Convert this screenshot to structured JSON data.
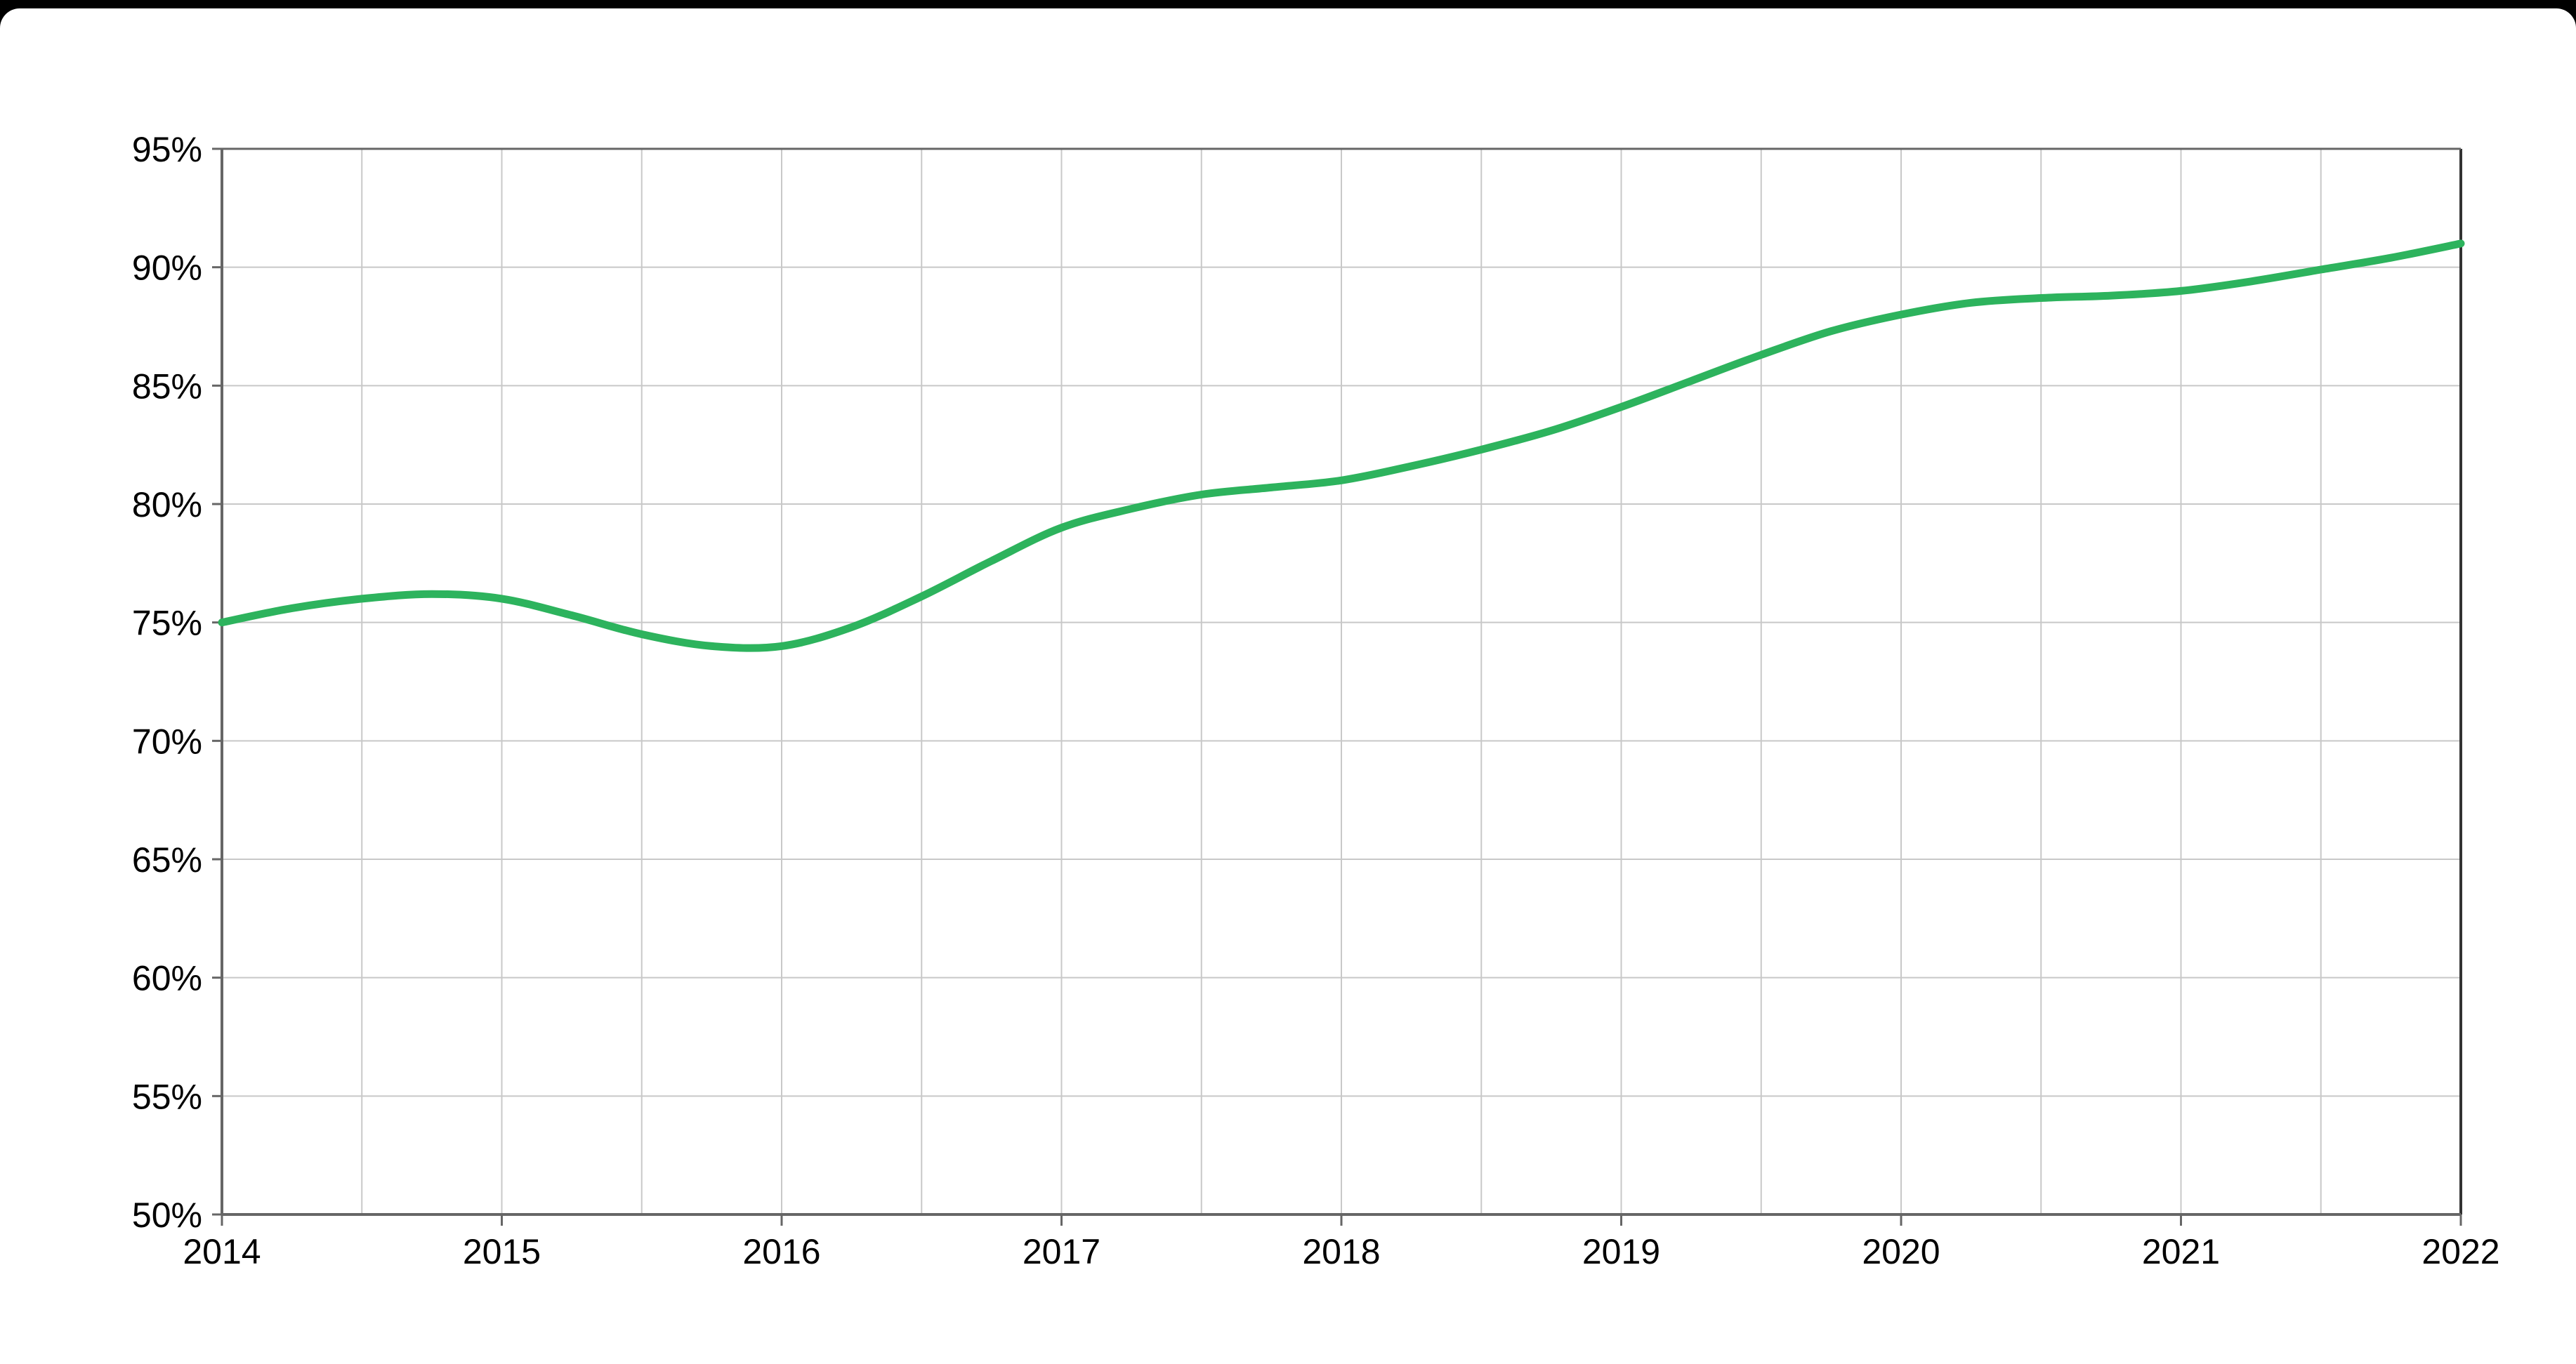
{
  "chart_data": {
    "type": "line",
    "title": "",
    "xlabel": "",
    "ylabel": "",
    "xlim": [
      2014,
      2022
    ],
    "ylim": [
      50,
      95
    ],
    "x_ticks": [
      2014,
      2015,
      2016,
      2017,
      2018,
      2019,
      2020,
      2021,
      2022
    ],
    "x_tick_labels": [
      "2014",
      "2015",
      "2016",
      "2017",
      "2018",
      "2019",
      "2020",
      "2021",
      "2022"
    ],
    "y_ticks": [
      50,
      55,
      60,
      65,
      70,
      75,
      80,
      85,
      90,
      95
    ],
    "y_tick_labels": [
      "50%",
      "55%",
      "60%",
      "65%",
      "70%",
      "75%",
      "80%",
      "85%",
      "90%",
      "95%"
    ],
    "grid": true,
    "legend": "none",
    "colors": {
      "line": "#2db35d",
      "grid": "#c8c8c8",
      "axis": "#666666"
    },
    "series": [
      {
        "x": [
          2014.0,
          2014.25,
          2014.5,
          2014.75,
          2015.0,
          2015.25,
          2015.5,
          2015.75,
          2016.0,
          2016.25,
          2016.5,
          2016.75,
          2017.0,
          2017.25,
          2017.5,
          2017.75,
          2018.0,
          2018.25,
          2018.5,
          2018.75,
          2019.0,
          2019.25,
          2019.5,
          2019.75,
          2020.0,
          2020.25,
          2020.5,
          2020.75,
          2021.0,
          2021.25,
          2021.5,
          2021.75,
          2022.0
        ],
        "values": [
          75.0,
          75.6,
          76.0,
          76.2,
          76.0,
          75.3,
          74.5,
          74.0,
          74.0,
          74.8,
          76.1,
          77.6,
          79.0,
          79.8,
          80.4,
          80.7,
          81.0,
          81.6,
          82.3,
          83.1,
          84.1,
          85.2,
          86.3,
          87.3,
          88.0,
          88.5,
          88.7,
          88.8,
          89.0,
          89.4,
          89.9,
          90.4,
          91.0
        ]
      }
    ]
  }
}
